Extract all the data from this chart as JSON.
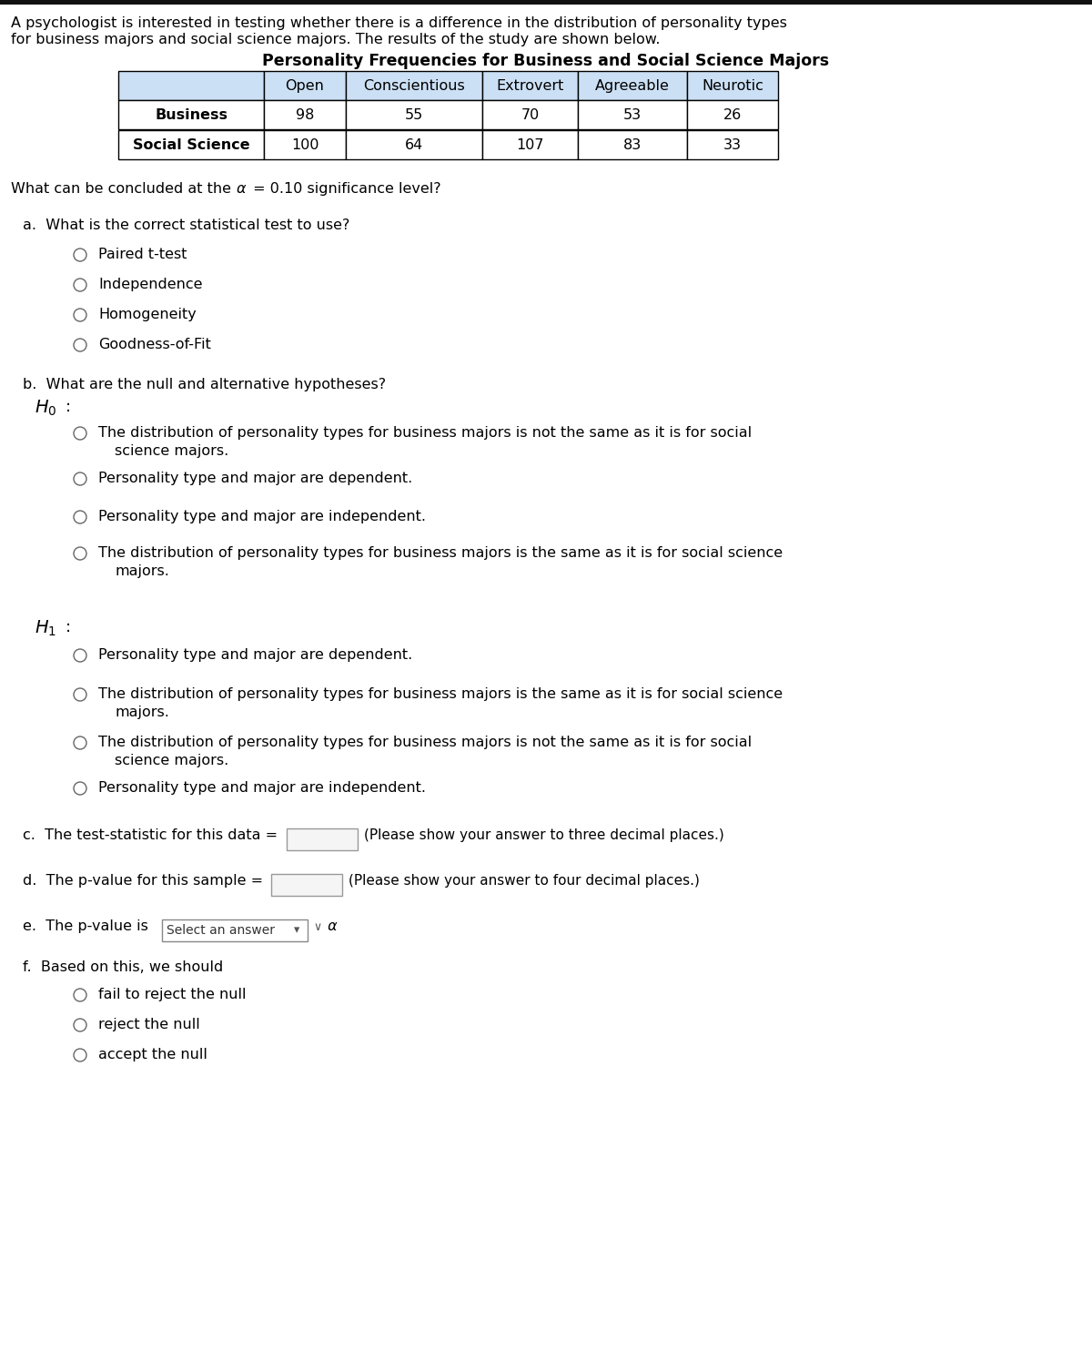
{
  "bg_color": "#ffffff",
  "intro_line1": "A psychologist is interested in testing whether there is a difference in the distribution of personality types",
  "intro_line2": "for business majors and social science majors. The results of the study are shown below.",
  "table_title": "Personality Frequencies for Business and Social Science Majors",
  "table_headers": [
    "",
    "Open",
    "Conscientious",
    "Extrovert",
    "Agreeable",
    "Neurotic"
  ],
  "table_rows": [
    [
      "Business",
      "98",
      "55",
      "70",
      "53",
      "26"
    ],
    [
      "Social Science",
      "100",
      "64",
      "107",
      "83",
      "33"
    ]
  ],
  "table_header_bg": "#cce0f5",
  "significance_text1": "What can be concluded at the ",
  "significance_alpha": "α",
  "significance_text2": " = 0.10 significance level?",
  "part_a_label": "a.  What is the correct statistical test to use?",
  "part_a_options": [
    "Paired t-test",
    "Independence",
    "Homogeneity",
    "Goodness-of-Fit"
  ],
  "part_b_label": "b.  What are the null and alternative hypotheses?",
  "H0_options": [
    [
      "The distribution of personality types for business majors is not the same as it is for social",
      "science majors."
    ],
    [
      "Personality type and major are dependent."
    ],
    [
      "Personality type and major are independent."
    ],
    [
      "The distribution of personality types for business majors is the same as it is for social science",
      "majors."
    ]
  ],
  "H1_options": [
    [
      "Personality type and major are dependent."
    ],
    [
      "The distribution of personality types for business majors is the same as it is for social science",
      "majors."
    ],
    [
      "The distribution of personality types for business majors is not the same as it is for social",
      "science majors."
    ],
    [
      "Personality type and major are independent."
    ]
  ],
  "part_c_label": "c.  The test-statistic for this data = ",
  "part_c_note": "(Please show your answer to three decimal places.)",
  "part_d_label": "d.  The p-value for this sample = ",
  "part_d_note": "(Please show your answer to four decimal places.)",
  "part_e_label": "e.  The p-value is ",
  "part_e_dropdown": "Select an answer",
  "part_e_suffix": " α",
  "part_f_label": "f.  Based on this, we should",
  "part_f_options": [
    "fail to reject the null",
    "reject the null",
    "accept the null"
  ]
}
